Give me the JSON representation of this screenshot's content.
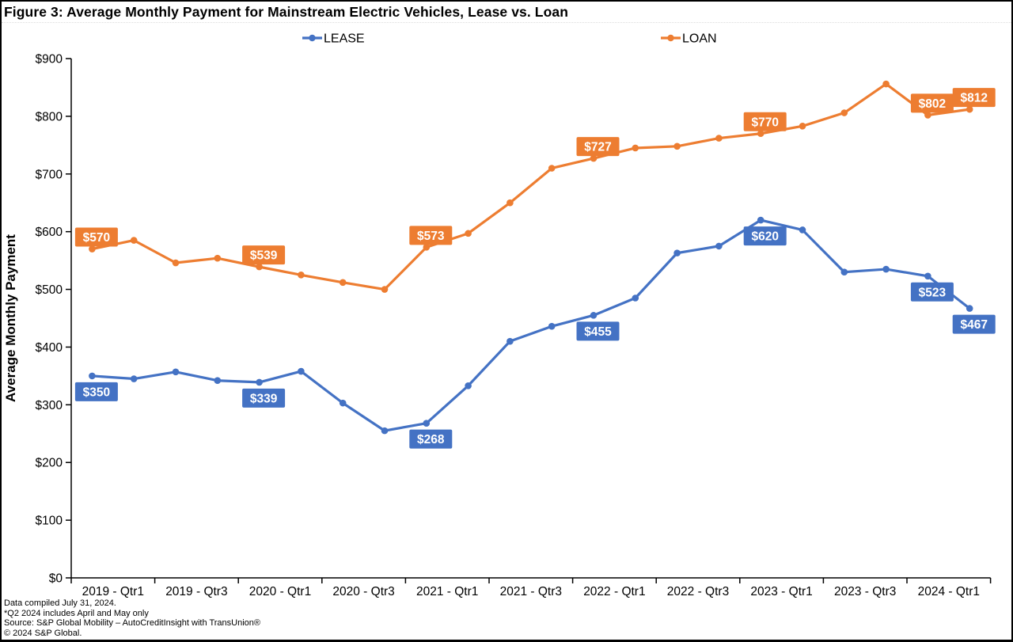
{
  "title": "Figure 3: Average Monthly Payment for Mainstream Electric Vehicles, Lease vs. Loan",
  "footnotes": [
    "Data compiled July 31, 2024.",
    "*Q2 2024 includes April and May only",
    "Source: S&P Global Mobility – AutoCreditInsight with TransUnion®",
    "© 2024 S&P Global."
  ],
  "chart_data": {
    "type": "line",
    "title": "Figure 3: Average Monthly Payment for Mainstream Electric Vehicles, Lease vs. Loan",
    "ylabel": "Average Monthly Payment",
    "xlabel": "",
    "ylim": [
      0,
      900
    ],
    "ytick_step": 100,
    "ytick_prefix": "$",
    "grid": false,
    "legend_position": "top",
    "categories": [
      "2019 - Qtr1",
      "2019 - Qtr2",
      "2019 - Qtr3",
      "2019 - Qtr4",
      "2020 - Qtr1",
      "2020 - Qtr2",
      "2020 - Qtr3",
      "2020 - Qtr4",
      "2021 - Qtr1",
      "2021 - Qtr2",
      "2021 - Qtr3",
      "2021 - Qtr4",
      "2022 - Qtr1",
      "2022 - Qtr2",
      "2022 - Qtr3",
      "2022 - Qtr4",
      "2023 - Qtr1",
      "2023 - Qtr2",
      "2023 - Qtr3",
      "2023 - Qtr4",
      "2024 - Qtr1",
      "2024 - Qtr2"
    ],
    "x_tick_labels": [
      "2019 - Qtr1",
      "2019 - Qtr3",
      "2020 - Qtr1",
      "2020 - Qtr3",
      "2021 - Qtr1",
      "2021 - Qtr3",
      "2022 - Qtr1",
      "2022 - Qtr3",
      "2023 - Qtr1",
      "2023 - Qtr3",
      "2024 - Qtr1"
    ],
    "series": [
      {
        "name": "LEASE",
        "color": "#4472C4",
        "label_side": "below",
        "values": [
          350,
          345,
          357,
          342,
          339,
          358,
          303,
          255,
          268,
          333,
          410,
          436,
          455,
          485,
          563,
          575,
          620,
          603,
          530,
          535,
          523,
          467
        ],
        "data_labels": [
          {
            "index": 0,
            "text": "$350"
          },
          {
            "index": 4,
            "text": "$339"
          },
          {
            "index": 8,
            "text": "$268"
          },
          {
            "index": 12,
            "text": "$455"
          },
          {
            "index": 16,
            "text": "$620"
          },
          {
            "index": 20,
            "text": "$523"
          },
          {
            "index": 21,
            "text": "$467"
          }
        ]
      },
      {
        "name": "LOAN",
        "color": "#ED7D31",
        "label_side": "above",
        "values": [
          570,
          585,
          546,
          554,
          539,
          525,
          512,
          500,
          573,
          597,
          650,
          710,
          727,
          745,
          748,
          762,
          770,
          783,
          806,
          856,
          802,
          812
        ],
        "data_labels": [
          {
            "index": 0,
            "text": "$570"
          },
          {
            "index": 4,
            "text": "$539"
          },
          {
            "index": 8,
            "text": "$573"
          },
          {
            "index": 12,
            "text": "$727"
          },
          {
            "index": 16,
            "text": "$770"
          },
          {
            "index": 20,
            "text": "$802"
          },
          {
            "index": 21,
            "text": "$812"
          }
        ]
      }
    ]
  }
}
